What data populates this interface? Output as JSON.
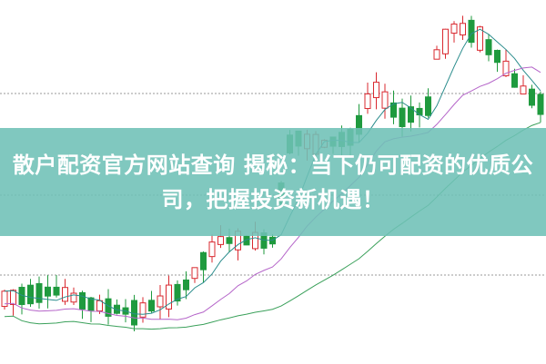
{
  "article": {
    "title": "散户配资官方网站查询 揭秘：当下仍可配资的优质公司，把握投资新机遇！"
  },
  "colors": {
    "banner": "#6ec0b6",
    "up_candle": "#d9282f",
    "down_candle": "#1f9a3e",
    "ma_short": "#2a8c8c",
    "ma_mid": "#b565c9",
    "ma_long": "#3aa05a"
  }
}
